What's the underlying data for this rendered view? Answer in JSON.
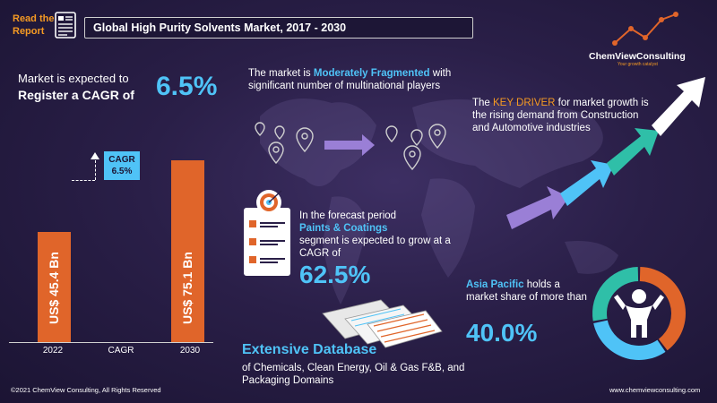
{
  "header": {
    "read_line1": "Read the",
    "read_line2": "Report",
    "title": "Global High Purity Solvents Market, 2017 - 2030"
  },
  "cagr_block": {
    "line1": "Market is expected to",
    "line2": "Register a CAGR of",
    "value": "6.5%"
  },
  "chart_data": {
    "type": "bar",
    "categories": [
      "2022",
      "CAGR",
      "2030"
    ],
    "values": [
      45.4,
      null,
      75.1
    ],
    "data_labels": [
      "US$ 45.4 Bn",
      "",
      "US$ 75.1 Bn"
    ],
    "callout": {
      "label": "CAGR",
      "value": "6.5%"
    },
    "ylim": [
      0,
      80
    ],
    "colors": {
      "bar": "#e0652a",
      "callout": "#4fc3f7"
    }
  },
  "fragmentation": {
    "prefix": "The market is ",
    "highlight": "Moderately Fragmented",
    "suffix": "with significant number of multinational players"
  },
  "forecast": {
    "line1": "In the forecast period",
    "segment": "Paints & Coatings",
    "line2": "segment is expected to grow at a CAGR of",
    "value": "62.5%"
  },
  "database": {
    "title": "Extensive Database",
    "text": "of Chemicals, Clean Energy, Oil & Gas F&B, and Packaging Domains"
  },
  "driver": {
    "prefix": "The ",
    "key": "KEY DRIVER",
    "text": "for market growth is the rising demand from Construction and Automotive industries"
  },
  "asia": {
    "name": "Asia Pacific",
    "text": " holds a market share of more than",
    "value": "40.0%",
    "share": 0.4
  },
  "logo": {
    "name": "ChemViewConsulting",
    "tagline": "Your growth catalyst"
  },
  "footer": {
    "copyright": "©2021  ChemView  Consulting,  All  Rights  Reserved",
    "website": "www.chemviewconsulting.com"
  },
  "colors": {
    "accent_blue": "#4fc3f7",
    "accent_orange": "#f59a23",
    "bar_orange": "#e0652a",
    "arrow_teal": "#2fbfa8",
    "arrow_purple": "#9a7fd6"
  },
  "icons": [
    "document-icon",
    "location-pins-icon",
    "target-checklist-icon",
    "database-sheets-icon",
    "growth-arrows-icon",
    "person-icon",
    "logo-chart-icon"
  ]
}
